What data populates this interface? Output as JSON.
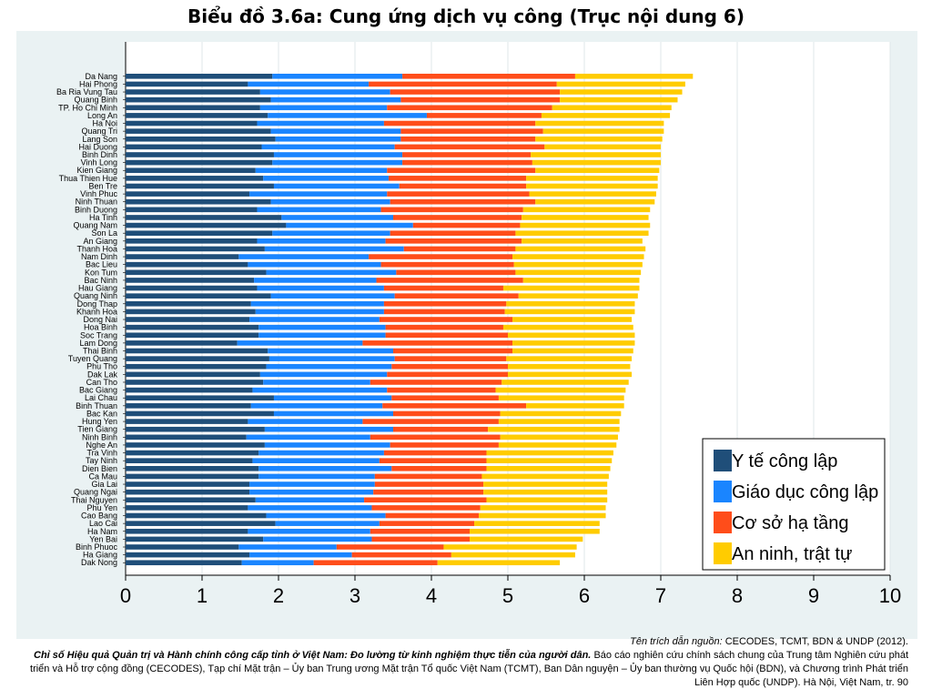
{
  "page": {
    "title": "Biểu đồ 3.6a: Cung ứng dịch vụ công (Trục nội dung 6)",
    "source_label": "Tên trích dẫn nguồn:",
    "source_org": "CECODES, TCMT, BDN & UNDP (2012).",
    "source_title": "Chỉ số Hiệu quả Quản trị và Hành chính công cấp tỉnh ở Việt Nam: Đo lường từ kinh nghiệm thực tiễn của người dân.",
    "source_rest": "Báo cáo nghiên cứu chính sách chung của Trung tâm Nghiên cứu phát triển và Hỗ trợ cộng đồng (CECODES), Tạp chí Mặt trận – Ủy ban Trung ương Mặt trận Tổ quốc Việt Nam (TCMT), Ban Dân nguyện – Ủy ban thường vụ Quốc hội (BDN), và Chương trình Phát triển Liên Hợp quốc (UNDP). Hà Nội, Việt Nam, tr. 90"
  },
  "chart_data": {
    "type": "bar",
    "orientation": "horizontal",
    "stacked": true,
    "xlim": [
      0,
      10
    ],
    "x_ticks": [
      "0",
      "1",
      "2",
      "3",
      "4",
      "5",
      "6",
      "7",
      "8",
      "9",
      "10"
    ],
    "grid": true,
    "legend_position": "bottom-right",
    "colors": [
      "#1f4e79",
      "#1a85ff",
      "#ff4d1a",
      "#ffcc00"
    ],
    "categories": [
      "Da Nang",
      "Hai Phong",
      "Ba Ria Vung Tau",
      "Quang Binh",
      "TP. Ho Chi Minh",
      "Long An",
      "Ha Noi",
      "Quang Tri",
      "Lang Son",
      "Hai Duong",
      "Binh Dinh",
      "Vinh Long",
      "Kien Giang",
      "Thua Thien Hue",
      "Ben Tre",
      "Vinh Phuc",
      "Ninh Thuan",
      "Binh Duong",
      "Ha Tinh",
      "Quang Nam",
      "Son La",
      "An Giang",
      "Thanh Hoa",
      "Nam Dinh",
      "Bac Lieu",
      "Kon Tum",
      "Bac Ninh",
      "Hau Giang",
      "Quang Ninh",
      "Dong Thap",
      "Khanh Hoa",
      "Dong Nai",
      "Hoa Binh",
      "Soc Trang",
      "Lam Dong",
      "Thai Binh",
      "Tuyen Quang",
      "Phu Tho",
      "Dak Lak",
      "Can Tho",
      "Bac Giang",
      "Lai Chau",
      "Binh Thuan",
      "Bac Kan",
      "Hung Yen",
      "Tien Giang",
      "Ninh Binh",
      "Nghe An",
      "Tra Vinh",
      "Tay Ninh",
      "Dien Bien",
      "Ca Mau",
      "Gia Lai",
      "Quang Ngai",
      "Thai Nguyen",
      "Phu Yen",
      "Cao Bang",
      "Lao Cai",
      "Ha Nam",
      "Yen Bai",
      "Binh Phuoc",
      "Ha Giang",
      "Dak Nong"
    ],
    "series": [
      {
        "name": "Y tế công lập",
        "values": [
          1.92,
          1.6,
          1.76,
          1.9,
          1.76,
          1.86,
          1.72,
          1.9,
          1.96,
          1.78,
          1.94,
          1.92,
          1.7,
          1.8,
          1.94,
          1.62,
          1.9,
          1.72,
          2.04,
          2.1,
          1.92,
          1.72,
          1.82,
          1.48,
          1.6,
          1.84,
          1.68,
          1.72,
          1.9,
          1.64,
          1.7,
          1.62,
          1.74,
          1.74,
          1.46,
          1.86,
          1.88,
          1.84,
          1.76,
          1.8,
          1.66,
          1.94,
          1.64,
          1.94,
          1.6,
          1.82,
          1.58,
          1.82,
          1.74,
          1.66,
          1.74,
          1.74,
          1.62,
          1.62,
          1.7,
          1.6,
          1.84,
          1.96,
          1.6,
          1.8,
          1.48,
          1.62,
          1.52
        ]
      },
      {
        "name": "Giáo dục công lập",
        "values": [
          1.7,
          1.58,
          1.7,
          1.7,
          1.66,
          2.08,
          1.66,
          1.7,
          1.64,
          1.74,
          1.68,
          1.7,
          1.72,
          1.64,
          1.64,
          1.8,
          1.56,
          1.62,
          1.46,
          1.66,
          1.54,
          1.68,
          1.82,
          1.7,
          1.74,
          1.7,
          1.6,
          1.66,
          1.62,
          1.74,
          1.68,
          1.7,
          1.66,
          1.66,
          1.64,
          1.64,
          1.64,
          1.64,
          1.66,
          1.4,
          1.76,
          1.54,
          1.72,
          1.56,
          1.5,
          1.68,
          1.62,
          1.64,
          1.64,
          1.66,
          1.74,
          1.52,
          1.64,
          1.62,
          1.42,
          1.62,
          1.56,
          1.36,
          1.6,
          1.42,
          1.28,
          1.34,
          0.94
        ]
      },
      {
        "name": "Cơ sở hạ tầng",
        "values": [
          2.26,
          2.46,
          2.22,
          2.08,
          2.16,
          1.5,
          1.98,
          1.86,
          1.76,
          1.96,
          1.68,
          1.7,
          1.94,
          1.8,
          1.66,
          1.86,
          1.9,
          1.86,
          1.68,
          1.4,
          1.64,
          1.78,
          1.46,
          1.88,
          1.74,
          1.56,
          1.92,
          1.56,
          1.62,
          1.6,
          1.58,
          1.74,
          1.54,
          1.6,
          1.96,
          1.56,
          1.46,
          1.52,
          1.58,
          1.72,
          1.42,
          1.4,
          1.88,
          1.4,
          1.78,
          1.24,
          1.7,
          1.42,
          1.34,
          1.4,
          1.24,
          1.4,
          1.42,
          1.44,
          1.6,
          1.42,
          1.22,
          1.24,
          1.3,
          1.28,
          1.4,
          1.3,
          1.62
        ]
      },
      {
        "name": "An ninh, trật tự",
        "values": [
          1.54,
          1.68,
          1.6,
          1.54,
          1.56,
          1.68,
          1.68,
          1.58,
          1.66,
          1.52,
          1.7,
          1.68,
          1.62,
          1.72,
          1.72,
          1.66,
          1.56,
          1.66,
          1.66,
          1.7,
          1.74,
          1.58,
          1.7,
          1.72,
          1.68,
          1.64,
          1.52,
          1.78,
          1.56,
          1.68,
          1.7,
          1.56,
          1.7,
          1.66,
          1.6,
          1.58,
          1.64,
          1.6,
          1.62,
          1.66,
          1.7,
          1.64,
          1.28,
          1.58,
          1.58,
          1.72,
          1.54,
          1.54,
          1.66,
          1.64,
          1.62,
          1.66,
          1.62,
          1.62,
          1.58,
          1.64,
          1.66,
          1.64,
          1.7,
          1.48,
          1.74,
          1.62,
          1.6
        ]
      }
    ]
  }
}
